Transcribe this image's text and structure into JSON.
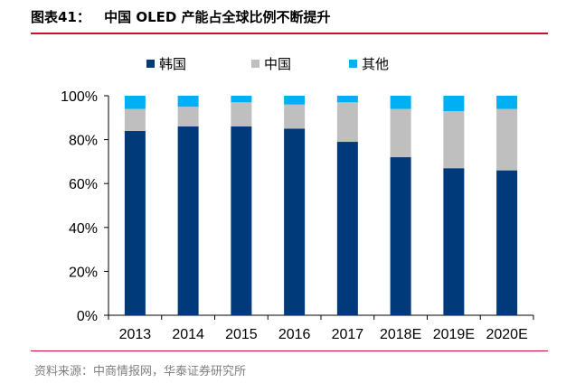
{
  "header": {
    "figure_label": "图表41：",
    "title": "中国 OLED 产能占全球比例不断提升"
  },
  "footer": {
    "source": "资料来源：中商情报网，华泰证券研究所"
  },
  "chart_data": {
    "type": "bar",
    "stacked": true,
    "categories": [
      "2013",
      "2014",
      "2015",
      "2016",
      "2017",
      "2018E",
      "2019E",
      "2020E"
    ],
    "series": [
      {
        "name": "韩国",
        "color": "#003a7a",
        "values": [
          84,
          86,
          86,
          85,
          79,
          72,
          67,
          66
        ]
      },
      {
        "name": "中国",
        "color": "#bfbfbf",
        "values": [
          10,
          9,
          11,
          11,
          18,
          22,
          26,
          28
        ]
      },
      {
        "name": "其他",
        "color": "#00b0f0",
        "values": [
          6,
          5,
          3,
          4,
          3,
          6,
          7,
          6
        ]
      }
    ],
    "ylim": [
      0,
      100
    ],
    "yticks": [
      "0%",
      "20%",
      "40%",
      "60%",
      "80%",
      "100%"
    ],
    "legend": "top",
    "grid": false
  }
}
